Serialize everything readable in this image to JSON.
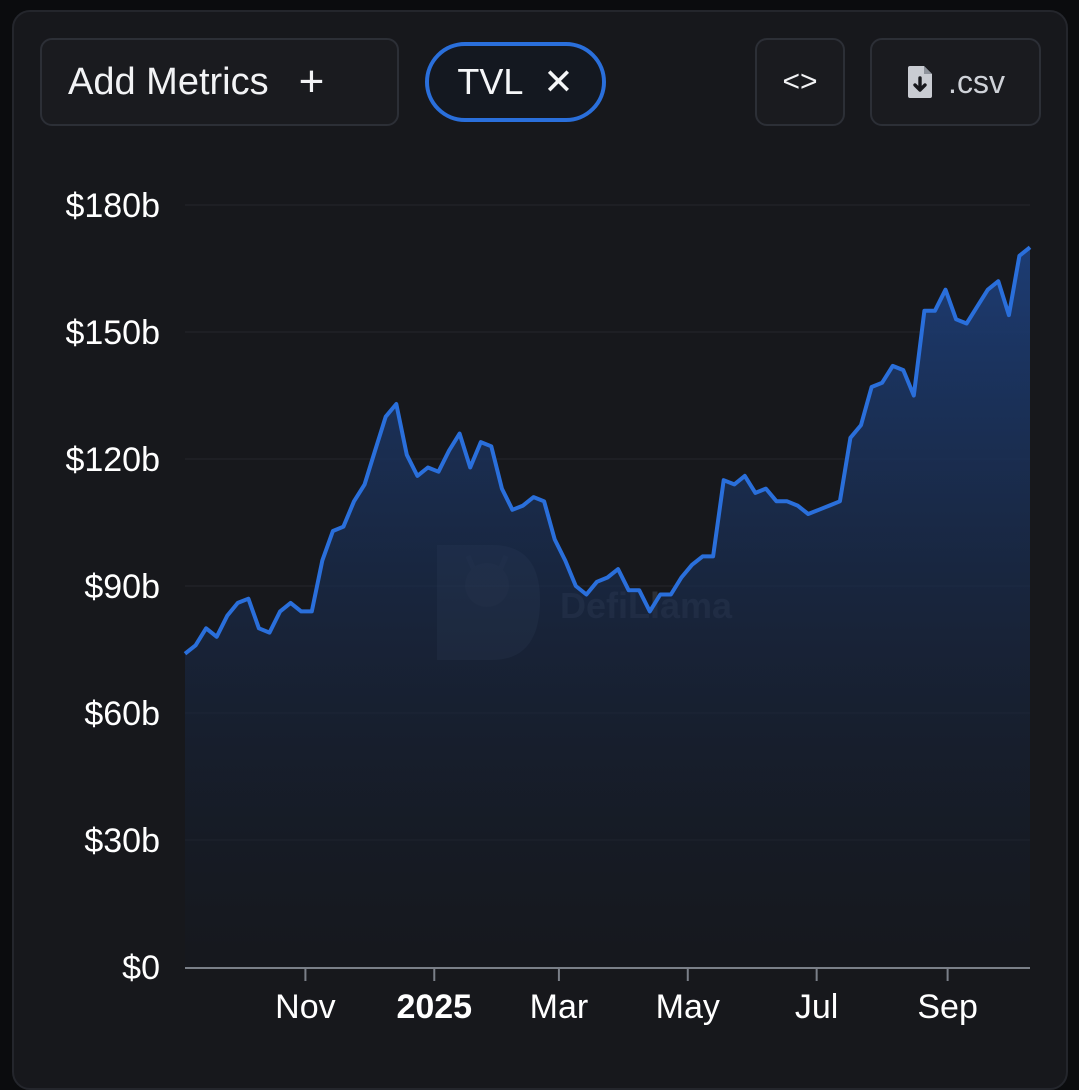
{
  "toolbar": {
    "add_metrics_label": "Add Metrics",
    "add_icon": "+",
    "metric_chip_label": "TVL",
    "remove_icon": "✕",
    "embed_icon": "<>",
    "csv_label": ".csv",
    "csv_icon": "file-download-icon"
  },
  "watermark": "DefiLlama",
  "colors": {
    "line": "#2a6fdb",
    "area_top": "#1d3e78",
    "area_bottom": "#141820",
    "grid": "#24262c",
    "axis": "#7a7f88",
    "text": "#ffffff"
  },
  "chart_data": {
    "type": "area",
    "title": "",
    "xlabel": "",
    "ylabel": "",
    "ylim": [
      0,
      180
    ],
    "y_ticks": [
      "$0",
      "$30b",
      "$60b",
      "$90b",
      "$120b",
      "$150b",
      "$180b"
    ],
    "x_ticks": [
      "Nov",
      "2025",
      "Mar",
      "May",
      "Jul",
      "Sep"
    ],
    "x_tick_dates": [
      "2024-11-01",
      "2025-01-01",
      "2025-03-01",
      "2025-05-01",
      "2025-07-01",
      "2025-09-01"
    ],
    "x_range": [
      "2024-09-05",
      "2025-10-10"
    ],
    "grid": true,
    "series": [
      {
        "x": [
          "2024-09-05",
          "2024-09-10",
          "2024-09-15",
          "2024-09-20",
          "2024-09-25",
          "2024-09-30",
          "2024-10-05",
          "2024-10-10",
          "2024-10-15",
          "2024-10-20",
          "2024-10-25",
          "2024-10-30",
          "2024-11-04",
          "2024-11-09",
          "2024-11-14",
          "2024-11-19",
          "2024-11-24",
          "2024-11-29",
          "2024-12-04",
          "2024-12-09",
          "2024-12-14",
          "2024-12-19",
          "2024-12-24",
          "2024-12-29",
          "2025-01-03",
          "2025-01-08",
          "2025-01-13",
          "2025-01-18",
          "2025-01-23",
          "2025-01-28",
          "2025-02-02",
          "2025-02-07",
          "2025-02-12",
          "2025-02-17",
          "2025-02-22",
          "2025-02-27",
          "2025-03-04",
          "2025-03-09",
          "2025-03-14",
          "2025-03-19",
          "2025-03-24",
          "2025-03-29",
          "2025-04-03",
          "2025-04-08",
          "2025-04-13",
          "2025-04-18",
          "2025-04-23",
          "2025-04-28",
          "2025-05-03",
          "2025-05-08",
          "2025-05-13",
          "2025-05-18",
          "2025-05-23",
          "2025-05-28",
          "2025-06-02",
          "2025-06-07",
          "2025-06-12",
          "2025-06-17",
          "2025-06-22",
          "2025-06-27",
          "2025-07-02",
          "2025-07-07",
          "2025-07-12",
          "2025-07-17",
          "2025-07-22",
          "2025-07-27",
          "2025-08-01",
          "2025-08-06",
          "2025-08-11",
          "2025-08-16",
          "2025-08-21",
          "2025-08-26",
          "2025-08-31",
          "2025-09-05",
          "2025-09-10",
          "2025-09-15",
          "2025-09-20",
          "2025-09-25",
          "2025-09-30",
          "2025-10-05",
          "2025-10-10"
        ],
        "values": [
          74,
          76,
          80,
          78,
          83,
          86,
          87,
          80,
          79,
          84,
          86,
          84,
          84,
          96,
          103,
          104,
          110,
          114,
          122,
          130,
          133,
          121,
          116,
          118,
          117,
          122,
          126,
          118,
          124,
          123,
          113,
          108,
          109,
          111,
          110,
          101,
          96,
          90,
          88,
          91,
          92,
          94,
          89,
          89,
          84,
          88,
          88,
          92,
          95,
          97,
          97,
          115,
          114,
          116,
          112,
          113,
          110,
          110,
          109,
          107,
          108,
          109,
          110,
          125,
          128,
          137,
          138,
          142,
          141,
          135,
          155,
          155,
          160,
          153,
          152,
          156,
          160,
          162,
          154,
          168,
          170
        ]
      }
    ]
  }
}
